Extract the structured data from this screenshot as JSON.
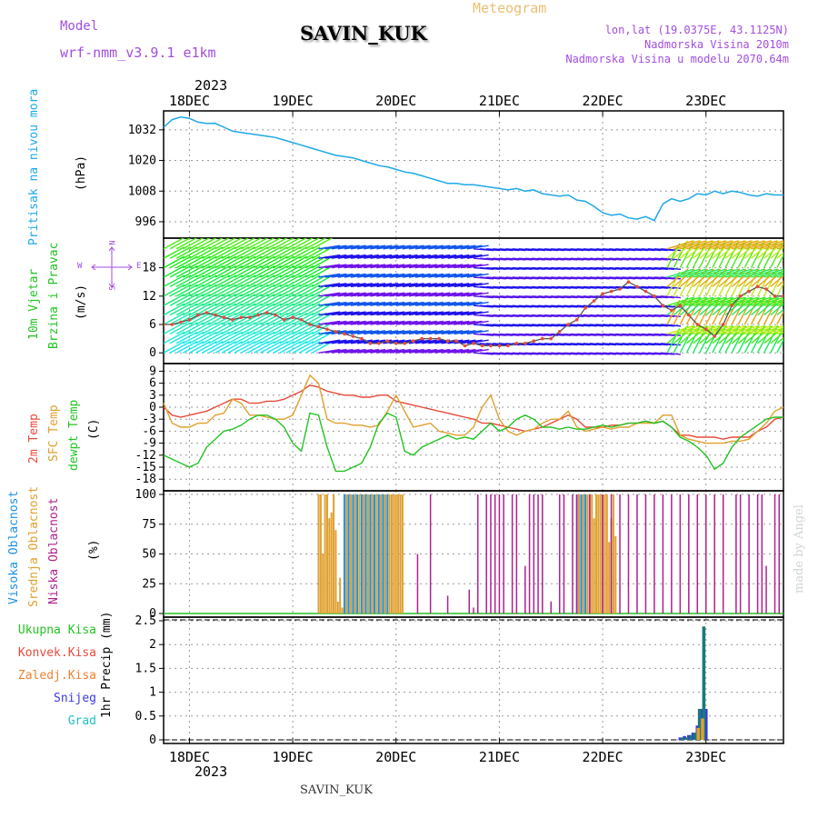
{
  "header": {
    "model_label": "Model",
    "model_name": "wrf-nmm_v3.9.1  e1km",
    "station": "SAVIN_KUK",
    "chart_kind": "Meteogram",
    "lonlat": "lon,lat (19.0375E, 43.1125N)",
    "elevation": "Nadmorska Visina 2010m",
    "model_elevation": "Nadmorska Visina u modelu 2070.64m"
  },
  "footer": {
    "station": "SAVIN_KUK",
    "credit": "made by Angel"
  },
  "time_axis": {
    "year": "2023",
    "days": [
      "18DEC",
      "19DEC",
      "20DEC",
      "21DEC",
      "22DEC",
      "23DEC"
    ],
    "hours_shown": [
      -6,
      138
    ]
  },
  "colors": {
    "pressure": "#1ea8e8",
    "temp2m": "#e84a3a",
    "sfc": "#e0a030",
    "dewpt": "#22c322",
    "high_cloud": "#1e90e0",
    "mid_cloud": "#e0a030",
    "low_cloud": "#b0208e",
    "rain_total": "#22c322",
    "rain_conv": "#e84a3a",
    "rain_frz": "#f08030",
    "snow": "#3a3ae0",
    "hail": "#20c0c0",
    "teal": "#1a7a7a"
  },
  "chart_data": [
    {
      "type": "line",
      "ylabel_name": "Pritisak na nivou mora",
      "ylabel_unit": "(hPa)",
      "yticks": [
        996,
        1008,
        1020,
        1032
      ],
      "ylim": [
        991,
        1038
      ],
      "x": [
        -6,
        -4,
        -2,
        0,
        2,
        4,
        6,
        8,
        10,
        12,
        14,
        16,
        18,
        20,
        22,
        24,
        26,
        28,
        30,
        32,
        34,
        36,
        38,
        40,
        42,
        44,
        46,
        48,
        50,
        52,
        54,
        56,
        58,
        60,
        62,
        64,
        66,
        68,
        70,
        72,
        74,
        76,
        78,
        80,
        82,
        84,
        86,
        88,
        90,
        92,
        94,
        96,
        98,
        100,
        102,
        104,
        106,
        108,
        110,
        112,
        114,
        116,
        118,
        120,
        122,
        124,
        126,
        128,
        130,
        132,
        134,
        136,
        138
      ],
      "values": [
        1033,
        1036,
        1037,
        1036.5,
        1035,
        1034.5,
        1034.5,
        1033,
        1031.5,
        1031,
        1030.5,
        1030,
        1029.5,
        1029,
        1028,
        1027,
        1026,
        1025,
        1024,
        1023,
        1022,
        1021.5,
        1021,
        1020,
        1019,
        1018,
        1017.5,
        1016.5,
        1015.5,
        1015,
        1014,
        1013,
        1012,
        1011,
        1011,
        1010.5,
        1010.5,
        1010,
        1009.5,
        1009,
        1008.5,
        1009,
        1008,
        1008.5,
        1007,
        1006.5,
        1006,
        1006.5,
        1004.5,
        1004,
        1002,
        999.5,
        998.5,
        999,
        997.5,
        997,
        998,
        996.5,
        1003,
        1005,
        1004,
        1005,
        1007,
        1006.5,
        1008,
        1007,
        1008,
        1007.5,
        1006.5,
        1006,
        1007,
        1006.5,
        1006.5
      ]
    },
    {
      "type": "scatter",
      "ylabel_name": "10m Vjetar",
      "ylabel_name2": "Brzina i Pravac",
      "ylabel_unit": "(m/s)",
      "compass": {
        "n": "N",
        "s": "S",
        "e": "E",
        "w": "W"
      },
      "yticks": [
        0,
        6,
        12,
        18
      ],
      "ylim": [
        -1.5,
        23.5
      ],
      "x": [
        -6,
        -4,
        -2,
        0,
        2,
        4,
        6,
        8,
        10,
        12,
        14,
        16,
        18,
        20,
        22,
        24,
        26,
        28,
        30,
        32,
        34,
        36,
        38,
        40,
        42,
        44,
        46,
        48,
        50,
        52,
        54,
        56,
        58,
        60,
        62,
        64,
        66,
        68,
        70,
        72,
        74,
        76,
        78,
        80,
        82,
        84,
        86,
        88,
        90,
        92,
        94,
        96,
        98,
        100,
        102,
        104,
        106,
        108,
        110,
        112,
        114,
        116,
        118,
        120,
        122,
        124,
        126,
        128,
        130,
        132,
        134,
        136,
        138
      ],
      "values": [
        6,
        6,
        6.5,
        7,
        8,
        8.5,
        8,
        7.5,
        7,
        7.5,
        7.5,
        8,
        8.5,
        8,
        7,
        7.5,
        7,
        6,
        5.5,
        5,
        4.5,
        4,
        3.5,
        3,
        2,
        2,
        2.5,
        2,
        2,
        2.5,
        3,
        3,
        3,
        2.5,
        2.5,
        1.5,
        2,
        1.5,
        1.5,
        1.5,
        1.5,
        2,
        2,
        2.5,
        3,
        3,
        4.5,
        6,
        7,
        9.5,
        11,
        12.5,
        13,
        13.5,
        15,
        14,
        13,
        12,
        10,
        9,
        10,
        8,
        6,
        5,
        3.5,
        6,
        10,
        12,
        13,
        14,
        13.5,
        12,
        12
      ]
    },
    {
      "type": "line",
      "ylabel_name": "2m Temp",
      "ylabel_name2": "SFC Temp",
      "ylabel_name3": "dewpt Temp",
      "ylabel_unit": "(C)",
      "yticks": [
        -18,
        -15,
        -12,
        -9,
        -6,
        -3,
        0,
        3,
        6,
        9
      ],
      "ylim": [
        -20,
        10
      ],
      "x": [
        -6,
        -4,
        -2,
        0,
        2,
        4,
        6,
        8,
        10,
        12,
        14,
        16,
        18,
        20,
        22,
        24,
        26,
        28,
        30,
        32,
        34,
        36,
        38,
        40,
        42,
        44,
        46,
        48,
        50,
        52,
        54,
        56,
        58,
        60,
        62,
        64,
        66,
        68,
        70,
        72,
        74,
        76,
        78,
        80,
        82,
        84,
        86,
        88,
        90,
        92,
        94,
        96,
        98,
        100,
        102,
        104,
        106,
        108,
        110,
        112,
        114,
        116,
        118,
        120,
        122,
        124,
        126,
        128,
        130,
        132,
        134,
        136,
        138
      ],
      "series": [
        {
          "name": "2m Temp",
          "color": "#e84a3a",
          "values": [
            0,
            -2,
            -2.5,
            -2,
            -1.5,
            -1,
            0,
            1,
            2,
            2,
            1,
            1,
            1.5,
            1.5,
            2,
            3,
            4,
            5.5,
            5,
            4,
            3.5,
            3,
            3,
            2.5,
            2.5,
            3,
            3,
            1.5,
            1,
            0.5,
            0,
            -0.5,
            -1,
            -1.5,
            -2,
            -2.5,
            -3,
            -4,
            -4,
            -4.5,
            -5,
            -5.5,
            -6,
            -5.5,
            -5,
            -4,
            -3,
            -2,
            -3,
            -5,
            -5,
            -5,
            -4.5,
            -4.5,
            -4,
            -4,
            -3.5,
            -4,
            -3.5,
            -5,
            -7,
            -7,
            -7.5,
            -7.5,
            -7.5,
            -8,
            -7.5,
            -7.5,
            -7.5,
            -6,
            -5,
            -3,
            -2.5
          ]
        },
        {
          "name": "SFC Temp",
          "color": "#e0a030",
          "values": [
            1,
            -4,
            -5,
            -5,
            -4,
            -4,
            -2,
            -1.5,
            2,
            1,
            -2,
            -2,
            -2.5,
            -3,
            -3,
            -2,
            3,
            8,
            6,
            -3,
            -4,
            -4,
            -4.5,
            -4.5,
            -5,
            -4.5,
            -1,
            3,
            -1,
            -5,
            -4.5,
            -4,
            -6,
            -6.5,
            -7,
            -7,
            -5,
            0,
            3,
            -3,
            -6,
            -7,
            -6,
            -5.5,
            -4,
            -3,
            -3,
            -1,
            -5,
            -6,
            -5.5,
            -5,
            -5.5,
            -5,
            -5,
            -4,
            -4,
            -4,
            -2,
            -2,
            -7,
            -8,
            -8.5,
            -9,
            -9,
            -9,
            -8.5,
            -8.5,
            -8,
            -6,
            -4,
            -1,
            0
          ]
        },
        {
          "name": "dewpt Temp",
          "color": "#22c322",
          "values": [
            -12,
            -13,
            -14,
            -15,
            -14,
            -10,
            -8,
            -6,
            -5.5,
            -4.5,
            -3,
            -2,
            -2,
            -3,
            -5,
            -9,
            -11,
            -1.5,
            -2,
            -10,
            -16,
            -16,
            -15,
            -14,
            -10,
            -4,
            -1.5,
            -2.5,
            -11,
            -12,
            -10,
            -9,
            -8,
            -7,
            -8,
            -7.5,
            -8,
            -6,
            -4,
            -6,
            -5,
            -3,
            -2,
            -3,
            -5,
            -5,
            -5.5,
            -5,
            -5.5,
            -5.5,
            -5,
            -4.5,
            -5,
            -4.5,
            -4,
            -4,
            -3.5,
            -4,
            -3.5,
            -5,
            -7.5,
            -8.5,
            -10,
            -12,
            -15.5,
            -14,
            -10,
            -7.5,
            -6,
            -4.5,
            -3,
            -2.5,
            -2.5
          ]
        }
      ]
    },
    {
      "type": "bar",
      "ylabel_name": "Visoka Oblacnost",
      "ylabel_name2": "Srednja Oblacnost",
      "ylabel_name3": "Niska Oblacnost",
      "ylabel_unit": "(%)",
      "yticks": [
        0,
        25,
        50,
        75,
        100
      ],
      "ylim": [
        0,
        100
      ],
      "series": [
        {
          "name": "Visoka Oblacnost",
          "color": "#1e90e0",
          "x": [
            36,
            36.5,
            37,
            37.5,
            38,
            38.5,
            39,
            39.5,
            40,
            40.5,
            41,
            41.5,
            42,
            42.5,
            43,
            43.5,
            44,
            44.5,
            45,
            45.5,
            46,
            90,
            90.5,
            91,
            91.5,
            92
          ],
          "values": [
            100,
            100,
            100,
            100,
            100,
            100,
            100,
            100,
            100,
            100,
            100,
            100,
            100,
            100,
            100,
            100,
            100,
            100,
            100,
            100,
            100,
            100,
            100,
            100,
            100,
            100
          ]
        },
        {
          "name": "Srednja Oblacnost",
          "color": "#e0a030",
          "x": [
            30,
            30.5,
            31,
            31.5,
            32,
            32.5,
            33,
            33.5,
            34,
            34.5,
            35,
            35.5,
            36.5,
            37.5,
            38.5,
            39.5,
            40.5,
            41.5,
            42.5,
            43.5,
            44.5,
            45.5,
            46.5,
            47,
            47.5,
            48,
            48.5,
            49,
            49.5,
            90.5,
            91.5,
            92.5,
            93,
            93.5,
            94,
            94.5,
            95,
            95.5,
            96,
            96.5,
            97,
            97.5,
            98,
            98.5,
            99
          ],
          "values": [
            100,
            100,
            50,
            100,
            100,
            80,
            85,
            100,
            70,
            10,
            30,
            5,
            100,
            100,
            100,
            100,
            100,
            100,
            100,
            100,
            100,
            100,
            100,
            100,
            100,
            100,
            100,
            100,
            100,
            100,
            100,
            100,
            100,
            100,
            80,
            100,
            100,
            100,
            100,
            100,
            100,
            60,
            80,
            100,
            65
          ]
        },
        {
          "name": "Niska Oblacnost",
          "color": "#b0208e",
          "x": [
            53,
            56,
            60,
            65,
            66,
            67,
            69,
            70,
            71,
            72,
            73,
            75,
            76,
            78,
            79,
            80,
            81,
            82,
            84,
            86,
            87,
            89,
            90,
            93,
            96,
            98,
            100,
            102,
            104,
            106,
            108,
            110,
            112,
            114,
            116,
            118,
            120,
            122,
            124,
            127,
            128,
            130,
            132,
            133,
            134,
            136,
            137
          ],
          "values": [
            50,
            100,
            15,
            20,
            5,
            100,
            100,
            100,
            100,
            100,
            100,
            100,
            100,
            40,
            100,
            100,
            100,
            100,
            10,
            100,
            100,
            100,
            100,
            100,
            100,
            100,
            100,
            100,
            100,
            100,
            100,
            100,
            100,
            100,
            100,
            100,
            100,
            100,
            100,
            100,
            100,
            100,
            100,
            100,
            40,
            100,
            100
          ]
        }
      ]
    },
    {
      "type": "bar",
      "ylabel_unit": "1hr Precip (mm)",
      "legend": [
        "Ukupna Kisa",
        "Konvek.Kisa",
        "Zaledj.Kisa",
        "Snijeg",
        "Grad"
      ],
      "yticks": [
        0,
        0.5,
        1,
        1.5,
        2,
        2.5
      ],
      "ylim": [
        0,
        2.5
      ],
      "series": [
        {
          "name": "Snijeg",
          "color": "#3a3ae0",
          "x": [
            114,
            115,
            116,
            117,
            118,
            119,
            120
          ],
          "values": [
            0.05,
            0.08,
            0.1,
            0.15,
            0.3,
            0.65,
            0.65
          ]
        },
        {
          "name": "Ukupna Kisa",
          "color": "#1a7a7a",
          "x": [
            114.5,
            115.5,
            116.5,
            117.5,
            118.5,
            119.5
          ],
          "values": [
            0.05,
            0.05,
            0.1,
            0.15,
            0.65,
            2.38
          ]
        },
        {
          "name": "Zaledj.Kisa",
          "color": "#e0a030",
          "x": [
            118.2,
            119.2
          ],
          "values": [
            0.25,
            0.45
          ]
        }
      ]
    }
  ]
}
